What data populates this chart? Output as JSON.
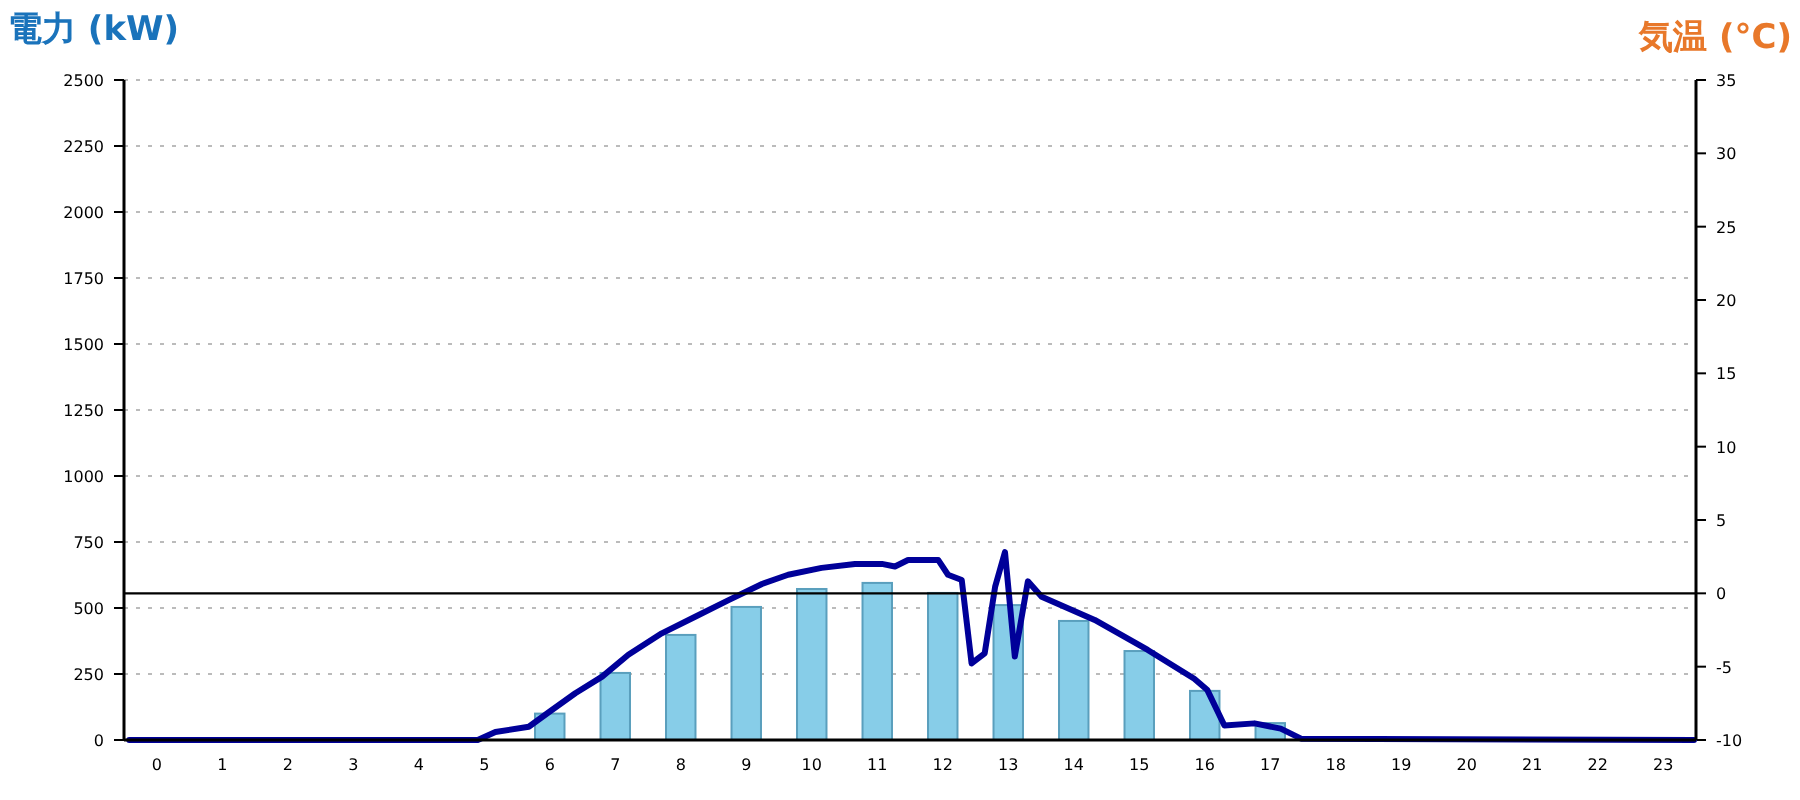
{
  "chart_data": {
    "type": "bar",
    "ylabel": "電力 (kW)",
    "y2label": "気温 (°C)",
    "x": [
      0,
      1,
      2,
      3,
      4,
      5,
      6,
      7,
      8,
      9,
      10,
      11,
      12,
      13,
      14,
      15,
      16,
      17,
      18,
      19,
      20,
      21,
      22,
      23
    ],
    "xlim": [
      -0.5,
      23.5
    ],
    "xticks": [
      0,
      1,
      2,
      3,
      4,
      5,
      6,
      7,
      8,
      9,
      10,
      11,
      12,
      13,
      14,
      15,
      16,
      17,
      18,
      19,
      20,
      21,
      22,
      23
    ],
    "ylim": [
      0,
      2500
    ],
    "yticks": [
      0,
      250,
      500,
      750,
      1000,
      1250,
      1500,
      1750,
      2000,
      2250,
      2500
    ],
    "y2lim": [
      -10,
      35
    ],
    "y2ticks": [
      -10,
      -5,
      0,
      5,
      10,
      15,
      20,
      25,
      30,
      35
    ],
    "grid": "y",
    "series": [
      {
        "color": "#87cde8",
        "values": [
          0,
          0,
          0,
          0,
          0,
          0,
          100,
          254,
          398,
          504,
          572,
          595,
          557,
          511,
          451,
          337,
          186,
          64,
          0,
          0,
          0,
          0,
          0,
          0
        ]
      },
      {
        "type": "line",
        "color": "#000099",
        "x": [
          -0.42,
          4.9,
          5.17,
          5.68,
          5.99,
          6.39,
          6.8,
          7.2,
          7.71,
          8.22,
          8.73,
          9.24,
          9.64,
          10.15,
          10.66,
          11.07,
          11.27,
          11.47,
          11.93,
          12.08,
          12.29,
          12.44,
          12.64,
          12.8,
          12.95,
          13.1,
          13.3,
          13.51,
          14.32,
          15.13,
          15.84,
          16.04,
          16.3,
          16.76,
          17.16,
          17.47,
          23.47
        ],
        "values": [
          0,
          0,
          30,
          50,
          106,
          177,
          240,
          323,
          404,
          467,
          530,
          591,
          626,
          652,
          667,
          667,
          657,
          682,
          682,
          626,
          606,
          290,
          328,
          581,
          712,
          316,
          601,
          543,
          455,
          341,
          232,
          189,
          55,
          63,
          43,
          5,
          0
        ]
      }
    ],
    "ref_lines": [
      {
        "axis": "y2",
        "value": 0,
        "color": "#000000"
      }
    ]
  }
}
